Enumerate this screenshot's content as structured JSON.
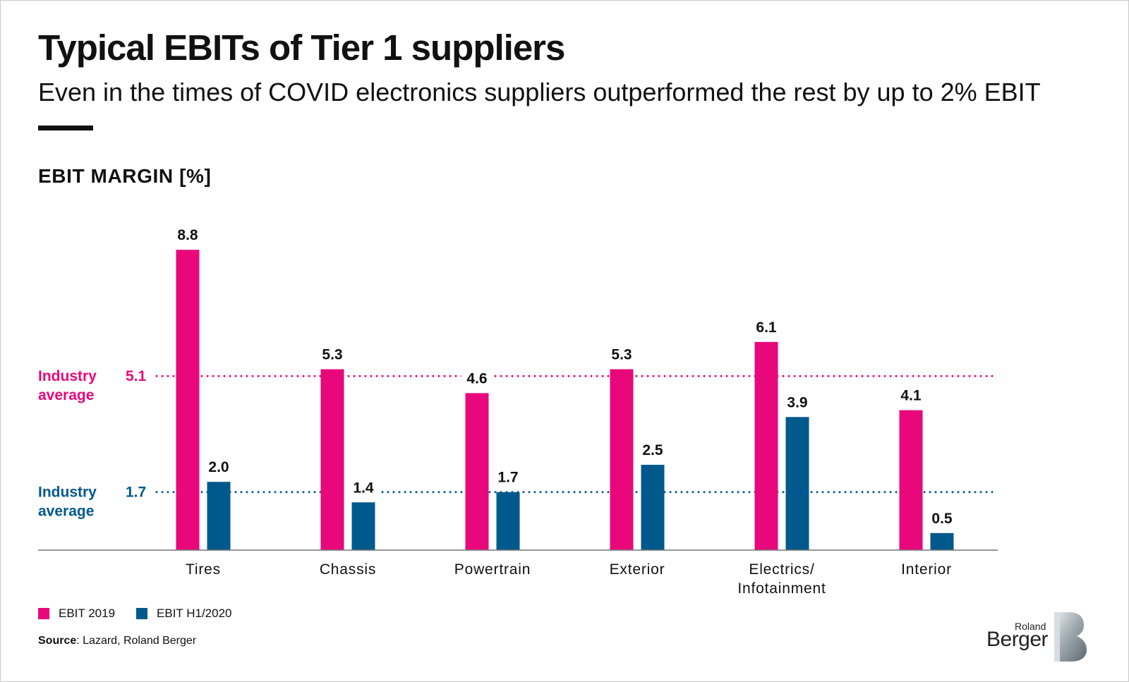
{
  "title": "Typical EBITs of Tier 1 suppliers",
  "subtitle": "Even in the times of COVID electronics suppliers outperformed the rest by up to 2% EBIT",
  "source_label": "Source",
  "source_text": ": Lazard, Roland Berger",
  "logo": {
    "line1": "Roland",
    "line2": "Berger",
    "mark": "b-logo-mark"
  },
  "colors": {
    "ebit2019": "#E8087B",
    "ebitH1_2020": "#00598C",
    "axis": "#777777"
  },
  "chart_data": {
    "type": "bar",
    "title": "EBIT MARGIN [%]",
    "ylim": [
      0,
      9.3
    ],
    "grid": false,
    "legend_position": "bottom-left",
    "categories": [
      [
        "Tires"
      ],
      [
        "Chassis"
      ],
      [
        "Powertrain"
      ],
      [
        "Exterior"
      ],
      [
        "Electrics/",
        "Infotainment"
      ],
      [
        "Interior"
      ]
    ],
    "series": [
      {
        "name": "EBIT 2019",
        "values": [
          8.8,
          5.3,
          4.6,
          5.3,
          6.1,
          4.1
        ],
        "labels": [
          "8.8",
          "5.3",
          "4.6",
          "5.3",
          "6.1",
          "4.1"
        ]
      },
      {
        "name": "EBIT H1/2020",
        "values": [
          2.0,
          1.4,
          1.7,
          2.5,
          3.9,
          0.5
        ],
        "labels": [
          "2.0",
          "1.4",
          "1.7",
          "2.5",
          "3.9",
          "0.5"
        ]
      }
    ],
    "reference_lines": [
      {
        "label_lines": [
          "Industry",
          "average"
        ],
        "value": 5.1,
        "value_label": "5.1",
        "series": "EBIT 2019"
      },
      {
        "label_lines": [
          "Industry",
          "average"
        ],
        "value": 1.7,
        "value_label": "1.7",
        "series": "EBIT H1/2020"
      }
    ]
  }
}
